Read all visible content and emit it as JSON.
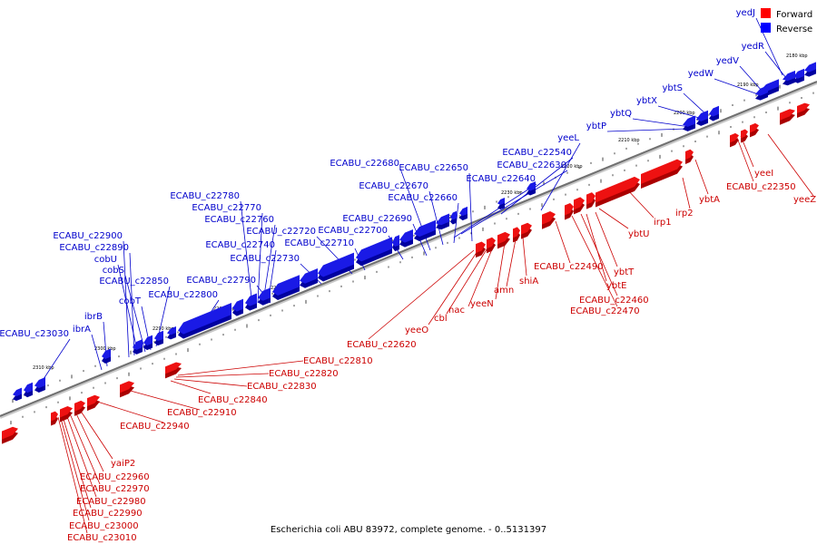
{
  "caption": "Escherichia coli ABU 83972, complete genome. - 0..5131397",
  "legend": [
    {
      "label": "Forward",
      "color": "#ff0000"
    },
    {
      "label": "Reverse",
      "color": "#0000ff"
    }
  ],
  "colors": {
    "forward_fill": "#ee1111",
    "forward_dark": "#aa0000",
    "reverse_fill": "#1a1ae6",
    "reverse_dark": "#0000a0",
    "backbone": "#777777",
    "forward_label": "#cc0000",
    "reverse_label": "#0000cc"
  },
  "scale_ticks": [
    "2180 kbp",
    "2190 kbp",
    "2200 kbp",
    "2210 kbp",
    "2220 kbp",
    "2230 kbp",
    "2240 kbp",
    "2250 kbp",
    "2260 kbp",
    "2270 kbp",
    "2280 kbp",
    "2290 kbp",
    "2300 kbp",
    "2310 kbp"
  ],
  "reverse_labels": [
    "yedJ",
    "yedR",
    "yedV",
    "yedW",
    "ybtS",
    "ybtX",
    "ybtQ",
    "ybtP",
    "yeeL",
    "ECABU_c22540",
    "ECABU_c22630",
    "ECABU_c22640",
    "ECABU_c22650",
    "ECABU_c22660",
    "ECABU_c22670",
    "ECABU_c22680",
    "ECABU_c22690",
    "ECABU_c22700",
    "ECABU_c22710",
    "ECABU_c22720",
    "ECABU_c22730",
    "ECABU_c22740",
    "ECABU_c22760",
    "ECABU_c22770",
    "ECABU_c22780",
    "ECABU_c22790",
    "ECABU_c22800",
    "ECABU_c22850",
    "cobT",
    "cobS",
    "cobU",
    "ECABU_c22890",
    "ECABU_c22900",
    "ibrB",
    "ibrA",
    "ECABU_c23030"
  ],
  "forward_labels": [
    "yeeI",
    "ECABU_c22350",
    "yeeZ",
    "ybtA",
    "irp2",
    "irp1",
    "ybtU",
    "ybtT",
    "ybtE",
    "ECABU_c22460",
    "ECABU_c22470",
    "ECABU_c22490",
    "shiA",
    "amn",
    "yeeN",
    "nac",
    "cbl",
    "yeeO",
    "ECABU_c22620",
    "ECABU_c22810",
    "ECABU_c22820",
    "ECABU_c22830",
    "ECABU_c22840",
    "ECABU_c22910",
    "ECABU_c22940",
    "yaiP2",
    "ECABU_c22960",
    "ECABU_c22970",
    "ECABU_c22980",
    "ECABU_c22990",
    "ECABU_c23000",
    "ECABU_c23010"
  ]
}
